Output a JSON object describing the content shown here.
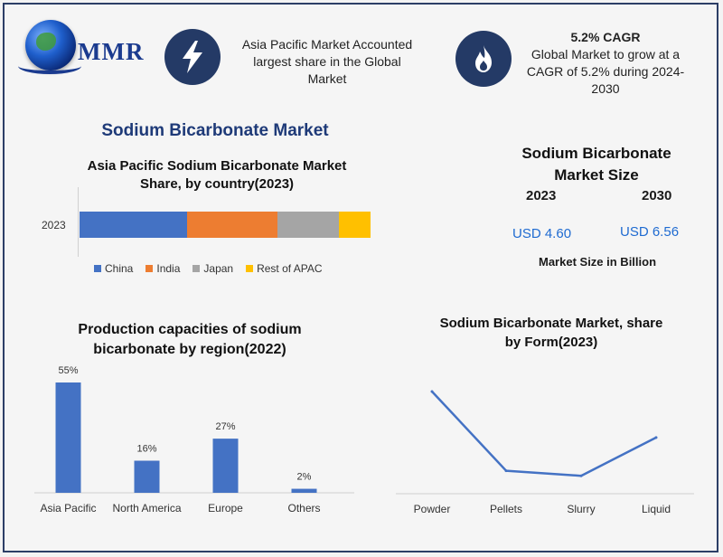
{
  "header": {
    "logo_text": "MMR",
    "callout1": {
      "icon": "lightning-bolt-icon",
      "lines": [
        "Asia Pacific Market Accounted",
        "largest share in the Global",
        "Market"
      ]
    },
    "callout2": {
      "icon": "flame-icon",
      "title": "5.2% CAGR",
      "lines": [
        "Global Market to grow at a",
        "CAGR of 5.2% during 2024-",
        "2030"
      ]
    }
  },
  "main_title": "Sodium Bicarbonate Market",
  "market_size": {
    "title_lines": [
      "Sodium Bicarbonate",
      "Market Size"
    ],
    "years": [
      "2023",
      "2030"
    ],
    "values": [
      "USD 4.60",
      "USD 6.56"
    ],
    "footnote": "Market Size in Billion"
  },
  "colors": {
    "accent_blue": "#4472c4",
    "orange": "#ed7d31",
    "gray": "#a5a5a5",
    "yellow": "#ffc000",
    "navy": "#243a66",
    "value_blue": "#1f6bd1"
  },
  "chart_data": [
    {
      "type": "bar",
      "orientation": "horizontal-stacked",
      "title_lines": [
        "Asia Pacific Sodium Bicarbonate Market",
        "Share, by country(2023)"
      ],
      "categories": [
        "2023"
      ],
      "series": [
        {
          "name": "China",
          "values": [
            37
          ],
          "color": "#4472c4"
        },
        {
          "name": "India",
          "values": [
            31
          ],
          "color": "#ed7d31"
        },
        {
          "name": "Japan",
          "values": [
            21
          ],
          "color": "#a5a5a5"
        },
        {
          "name": "Rest of APAC",
          "values": [
            11
          ],
          "color": "#ffc000"
        }
      ],
      "legend_position": "bottom"
    },
    {
      "type": "bar",
      "title_lines": [
        "Production capacities of sodium",
        "bicarbonate by region(2022)"
      ],
      "categories": [
        "Asia Pacific",
        "North America",
        "Europe",
        "Others"
      ],
      "values": [
        55,
        16,
        27,
        2
      ],
      "value_labels": [
        "55%",
        "16%",
        "27%",
        "2%"
      ],
      "color": "#4472c4"
    },
    {
      "type": "line",
      "title_lines": [
        "Sodium Bicarbonate Market, share",
        "by Form(2023)"
      ],
      "categories": [
        "Powder",
        "Pellets",
        "Slurry",
        "Liquid"
      ],
      "values": [
        40,
        9,
        7,
        22
      ],
      "ylim": [
        0,
        40
      ],
      "color": "#4472c4"
    }
  ]
}
